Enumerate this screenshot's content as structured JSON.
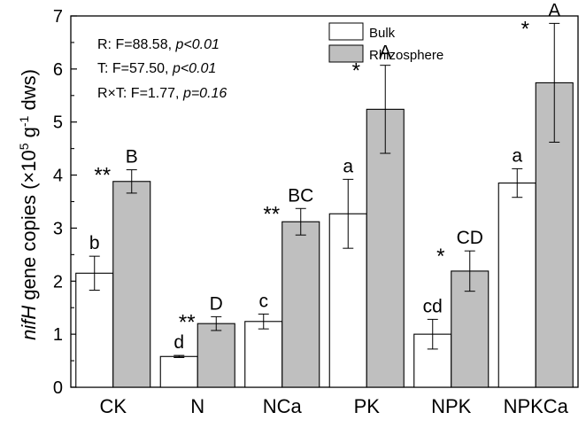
{
  "chart_data": {
    "type": "bar",
    "title": "",
    "xlabel": "",
    "ylabel": {
      "italic_part": "nifH",
      "rest": " gene copies (×10",
      "exp1": "5",
      "mid": " g",
      "exp2": "-1",
      "tail": " dws)"
    },
    "ylim": [
      0,
      7
    ],
    "yticks": [
      "0",
      "1",
      "2",
      "3",
      "4",
      "5",
      "6",
      "7"
    ],
    "categories": [
      "CK",
      "N",
      "NCa",
      "PK",
      "NPK",
      "NPKCa"
    ],
    "series": [
      {
        "name": "Bulk",
        "color": "#ffffff",
        "values": [
          2.15,
          0.58,
          1.24,
          3.27,
          1.0,
          3.85
        ],
        "errors": [
          0.32,
          0.02,
          0.14,
          0.65,
          0.28,
          0.27
        ],
        "letters": [
          "b",
          "d",
          "c",
          "a",
          "cd",
          "a"
        ]
      },
      {
        "name": "Rhizosphere",
        "color": "#bfbfbf",
        "values": [
          3.88,
          1.2,
          3.12,
          5.24,
          2.19,
          5.74
        ],
        "errors": [
          0.22,
          0.13,
          0.25,
          0.83,
          0.38,
          1.12
        ],
        "letters": [
          "B",
          "D",
          "BC",
          "A",
          "CD",
          "A"
        ],
        "significance": [
          "**",
          "**",
          "**",
          "*",
          "*",
          "*"
        ]
      }
    ],
    "legend": {
      "position": "top-right",
      "labels": [
        "Bulk",
        "Rhizosphere"
      ]
    },
    "annotations": {
      "stats": [
        {
          "prefix": "R: F=88.58, ",
          "p": "p<0.01"
        },
        {
          "prefix": "T:  F=57.50, ",
          "p": "p<0.01"
        },
        {
          "prefix": "R×T: F=1.77, ",
          "p": "p=0.16"
        }
      ]
    }
  }
}
